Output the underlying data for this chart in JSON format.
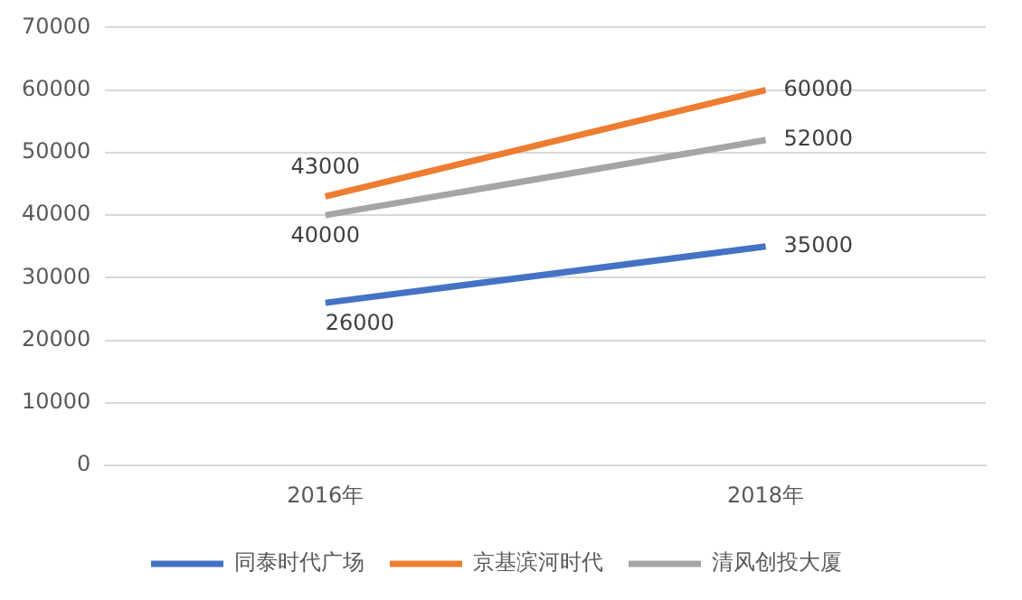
{
  "chart_data": {
    "type": "line",
    "categories": [
      "2016年",
      "2018年"
    ],
    "series": [
      {
        "name": "同泰时代广场",
        "color": "#4472c4",
        "values": [
          26000,
          35000
        ]
      },
      {
        "name": "京基滨河时代",
        "color": "#ed7d31",
        "values": [
          43000,
          60000
        ]
      },
      {
        "name": "清风创投大厦",
        "color": "#a5a5a5",
        "values": [
          40000,
          52000
        ]
      }
    ],
    "ylim": [
      0,
      70000
    ],
    "yticks": [
      0,
      10000,
      20000,
      30000,
      40000,
      50000,
      60000,
      70000
    ],
    "grid": "y",
    "legend": "bottom",
    "data_labels": true,
    "marker": "none",
    "line_style": "solid"
  }
}
